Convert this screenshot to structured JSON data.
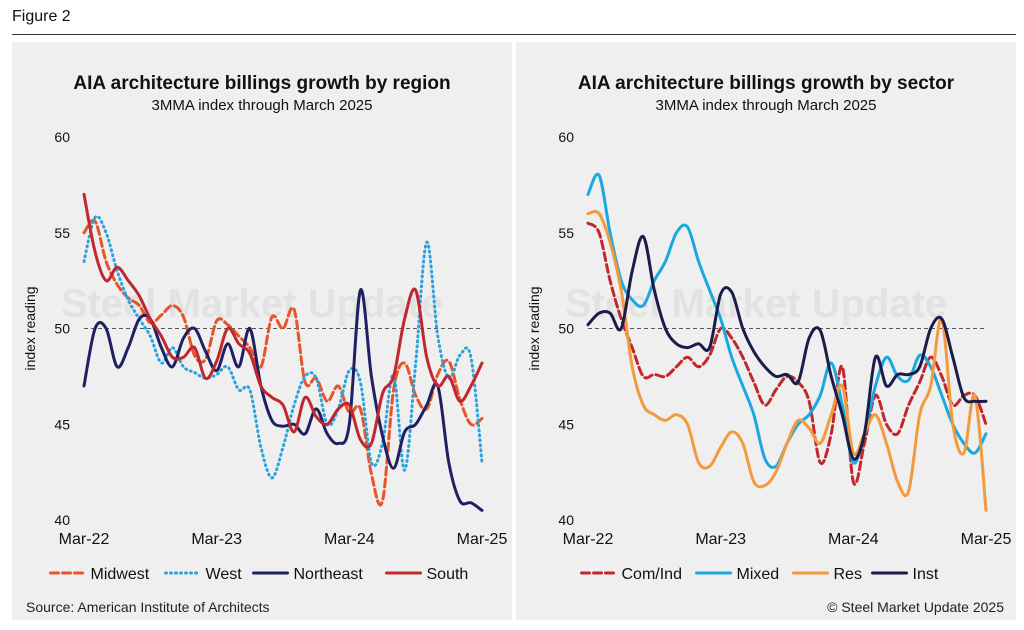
{
  "figure_label": "Figure 2",
  "source": "Source: American Institute of Architects",
  "copyright": "© Steel Market Update 2025",
  "watermark": "Steel Market Update",
  "colors": {
    "midwest": "#e8542a",
    "west": "#2aa3dd",
    "northeast": "#1f2063",
    "south": "#c0282d",
    "com_ind": "#c0282d",
    "mixed": "#1ba7e0",
    "res": "#f39a3c",
    "inst": "#1a1c4a",
    "reference": "#555555"
  },
  "chart_data": [
    {
      "type": "line",
      "title": "AIA architecture billings growth by region",
      "subtitle": "3MMA index through March 2025",
      "ylabel": "index reading",
      "xlabel": "",
      "ylim": [
        40,
        60
      ],
      "yticks": [
        40,
        45,
        50,
        55,
        60
      ],
      "xlim": [
        "2022-03",
        "2025-03"
      ],
      "xticks": [
        "Mar-22",
        "Mar-23",
        "Mar-24",
        "Mar-25"
      ],
      "reference_line": 50,
      "legend_position": "bottom",
      "x": [
        "2022-03",
        "2022-04",
        "2022-05",
        "2022-06",
        "2022-07",
        "2022-08",
        "2022-09",
        "2022-10",
        "2022-11",
        "2022-12",
        "2023-01",
        "2023-02",
        "2023-03",
        "2023-04",
        "2023-05",
        "2023-06",
        "2023-07",
        "2023-08",
        "2023-09",
        "2023-10",
        "2023-11",
        "2023-12",
        "2024-01",
        "2024-02",
        "2024-03",
        "2024-04",
        "2024-05",
        "2024-06",
        "2024-07",
        "2024-08",
        "2024-09",
        "2024-10",
        "2024-11",
        "2024-12",
        "2025-01",
        "2025-02",
        "2025-03"
      ],
      "series": [
        {
          "name": "Midwest",
          "color": "#e8542a",
          "style": "dashed",
          "values": [
            55.0,
            55.6,
            53.5,
            52.3,
            51.6,
            51.2,
            50.3,
            50.7,
            51.2,
            50.6,
            48.6,
            48.4,
            50.4,
            50.2,
            49.6,
            49.0,
            48.0,
            50.6,
            50.0,
            51.0,
            47.2,
            47.4,
            46.2,
            47.0,
            45.6,
            45.8,
            42.4,
            41.0,
            46.8,
            48.2,
            46.5,
            45.8,
            47.6,
            48.3,
            46.3,
            45.0,
            45.3
          ]
        },
        {
          "name": "West",
          "color": "#2aa3dd",
          "style": "dotted",
          "values": [
            53.5,
            55.8,
            55.0,
            53.0,
            51.5,
            50.5,
            49.6,
            48.2,
            49.0,
            48.0,
            47.7,
            47.4,
            47.6,
            48.0,
            46.8,
            46.8,
            43.8,
            42.2,
            43.8,
            46.0,
            47.5,
            47.4,
            45.0,
            45.8,
            47.8,
            47.2,
            43.0,
            44.0,
            47.6,
            42.6,
            48.2,
            54.5,
            49.6,
            47.4,
            48.6,
            48.5,
            43.0
          ]
        },
        {
          "name": "Northeast",
          "color": "#1f2063",
          "style": "solid",
          "values": [
            47.0,
            50.0,
            50.0,
            48.0,
            49.0,
            50.5,
            50.5,
            49.0,
            48.0,
            49.5,
            50.0,
            48.8,
            47.8,
            49.2,
            48.0,
            50.0,
            47.0,
            45.2,
            44.9,
            45.0,
            44.5,
            45.8,
            44.5,
            44.0,
            45.0,
            52.0,
            47.5,
            44.4,
            42.7,
            44.6,
            45.0,
            46.0,
            47.0,
            43.0,
            41.0,
            40.9,
            40.5
          ]
        },
        {
          "name": "South",
          "color": "#c0282d",
          "style": "solid",
          "values": [
            57.0,
            54.0,
            52.5,
            53.2,
            52.5,
            51.7,
            50.5,
            49.6,
            48.5,
            48.5,
            49.0,
            47.4,
            48.3,
            50.0,
            49.2,
            48.7,
            47.0,
            46.4,
            46.0,
            44.6,
            46.4,
            45.4,
            45.0,
            45.8,
            46.0,
            44.2,
            44.0,
            46.6,
            47.5,
            50.5,
            52.0,
            48.5,
            47.0,
            47.5,
            46.2,
            47.0,
            48.2
          ]
        }
      ]
    },
    {
      "type": "line",
      "title": "AIA architecture billings growth by sector",
      "subtitle": "3MMA index through March 2025",
      "ylabel": "index reading",
      "xlabel": "",
      "ylim": [
        40,
        60
      ],
      "yticks": [
        40,
        45,
        50,
        55,
        60
      ],
      "xlim": [
        "2022-03",
        "2025-03"
      ],
      "xticks": [
        "Mar-22",
        "Mar-23",
        "Mar-24",
        "Mar-25"
      ],
      "reference_line": 50,
      "legend_position": "bottom",
      "x": [
        "2022-03",
        "2022-04",
        "2022-05",
        "2022-06",
        "2022-07",
        "2022-08",
        "2022-09",
        "2022-10",
        "2022-11",
        "2022-12",
        "2023-01",
        "2023-02",
        "2023-03",
        "2023-04",
        "2023-05",
        "2023-06",
        "2023-07",
        "2023-08",
        "2023-09",
        "2023-10",
        "2023-11",
        "2023-12",
        "2024-01",
        "2024-02",
        "2024-03",
        "2024-04",
        "2024-05",
        "2024-06",
        "2024-07",
        "2024-08",
        "2024-09",
        "2024-10",
        "2024-11",
        "2024-12",
        "2025-01",
        "2025-02",
        "2025-03"
      ],
      "series": [
        {
          "name": "Com/Ind",
          "color": "#c0282d",
          "style": "dashed",
          "values": [
            55.5,
            55.0,
            52.5,
            50.5,
            49.0,
            47.5,
            47.6,
            47.5,
            48.0,
            48.5,
            48.0,
            48.6,
            50.0,
            49.5,
            48.5,
            47.2,
            46.0,
            46.8,
            47.5,
            47.2,
            46.2,
            43.0,
            44.5,
            48.0,
            42.0,
            44.0,
            46.5,
            45.0,
            44.5,
            46.0,
            47.2,
            48.5,
            47.5,
            46.0,
            46.5,
            46.5,
            45.0
          ]
        },
        {
          "name": "Mixed",
          "color": "#1ba7e0",
          "style": "solid",
          "values": [
            57.0,
            58.0,
            55.0,
            52.5,
            51.5,
            51.2,
            52.5,
            53.5,
            55.0,
            55.3,
            53.5,
            52.0,
            50.5,
            48.5,
            47.0,
            45.5,
            43.2,
            42.8,
            44.0,
            45.0,
            45.5,
            46.5,
            48.2,
            46.0,
            43.0,
            44.5,
            47.0,
            48.5,
            47.5,
            47.3,
            48.6,
            48.0,
            46.5,
            45.0,
            44.0,
            43.5,
            44.5
          ]
        },
        {
          "name": "Res",
          "color": "#f39a3c",
          "style": "solid",
          "values": [
            56.0,
            56.0,
            54.5,
            52.0,
            48.0,
            46.0,
            45.5,
            45.2,
            45.5,
            45.0,
            43.0,
            42.8,
            43.8,
            44.6,
            44.0,
            42.0,
            41.8,
            42.5,
            44.0,
            45.2,
            44.8,
            44.0,
            45.5,
            47.0,
            43.5,
            44.5,
            45.5,
            44.0,
            42.0,
            41.5,
            45.5,
            47.0,
            50.5,
            45.0,
            43.5,
            46.5,
            40.5
          ]
        },
        {
          "name": "Inst",
          "color": "#1a1c4a",
          "style": "solid",
          "values": [
            50.2,
            50.8,
            50.8,
            50.0,
            53.0,
            54.8,
            52.0,
            50.0,
            49.2,
            49.0,
            49.2,
            49.0,
            51.8,
            51.9,
            50.0,
            48.8,
            48.0,
            47.5,
            47.6,
            47.2,
            49.5,
            49.9,
            47.5,
            45.5,
            43.2,
            44.5,
            48.5,
            47.0,
            47.6,
            47.6,
            48.0,
            50.0,
            50.5,
            48.5,
            46.4,
            46.2,
            46.2
          ]
        }
      ]
    }
  ]
}
